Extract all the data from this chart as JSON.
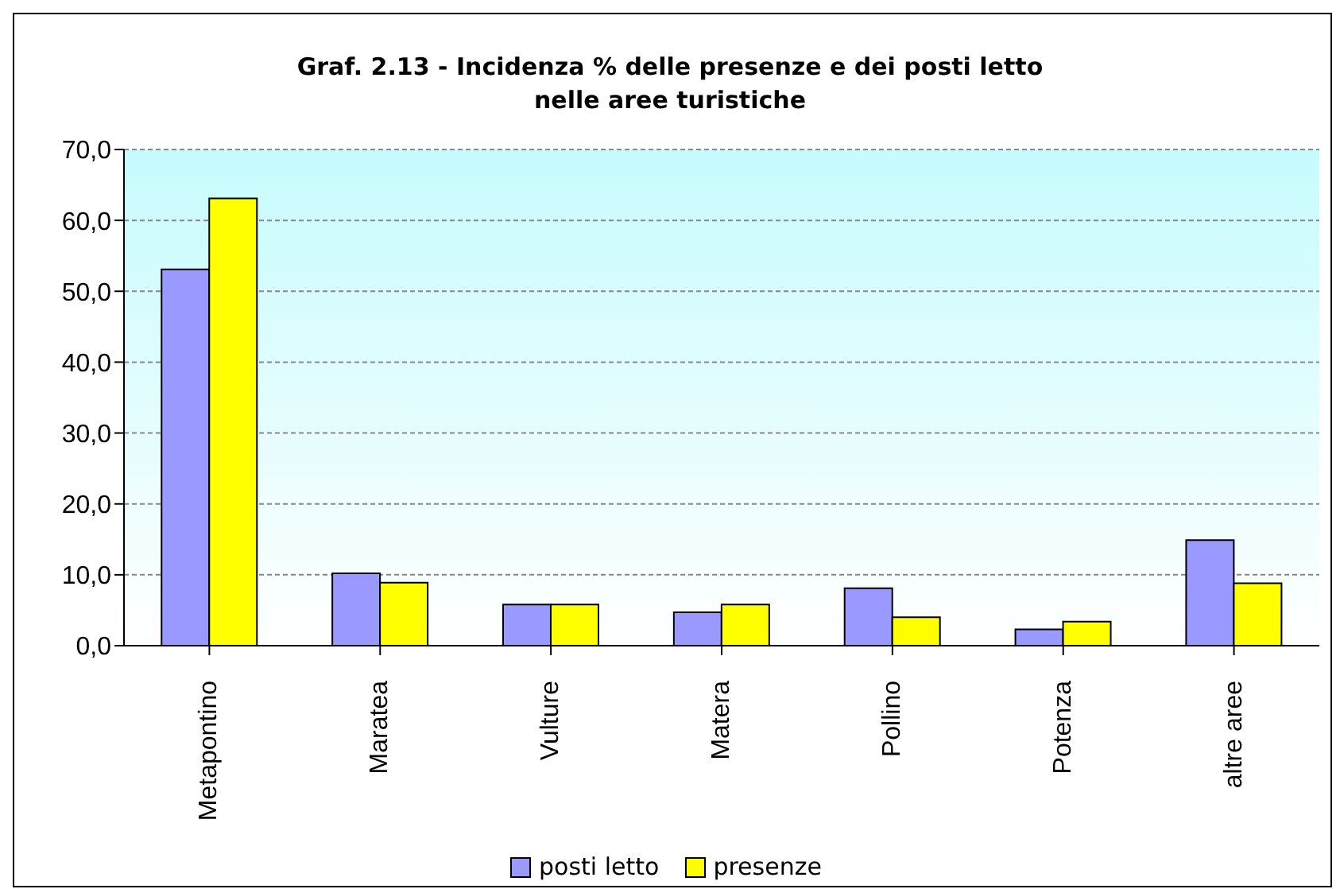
{
  "chart_data": {
    "type": "bar",
    "title": "Graf. 2.13 - Incidenza % delle presenze e dei posti letto\nnelle aree turistiche",
    "categories": [
      "Metapontino",
      "Maratea",
      "Vulture",
      "Matera",
      "Pollino",
      "Potenza",
      "altre aree"
    ],
    "series": [
      {
        "name": "posti letto",
        "color": "#9999ff",
        "values": [
          53.1,
          10.2,
          5.8,
          4.7,
          8.1,
          2.3,
          14.9
        ]
      },
      {
        "name": "presenze",
        "color": "#ffff00",
        "values": [
          63.1,
          8.9,
          5.8,
          5.8,
          4.0,
          3.4,
          8.8
        ]
      }
    ],
    "ylim": [
      0,
      70
    ],
    "yticks": [
      {
        "value": 0,
        "label": "0,0"
      },
      {
        "value": 10,
        "label": "10,0"
      },
      {
        "value": 20,
        "label": "20,0"
      },
      {
        "value": 30,
        "label": "30,0"
      },
      {
        "value": 40,
        "label": "40,0"
      },
      {
        "value": 50,
        "label": "50,0"
      },
      {
        "value": 60,
        "label": "60,0"
      },
      {
        "value": 70,
        "label": "70,0"
      }
    ],
    "grid": "y",
    "legend": "bottom"
  }
}
